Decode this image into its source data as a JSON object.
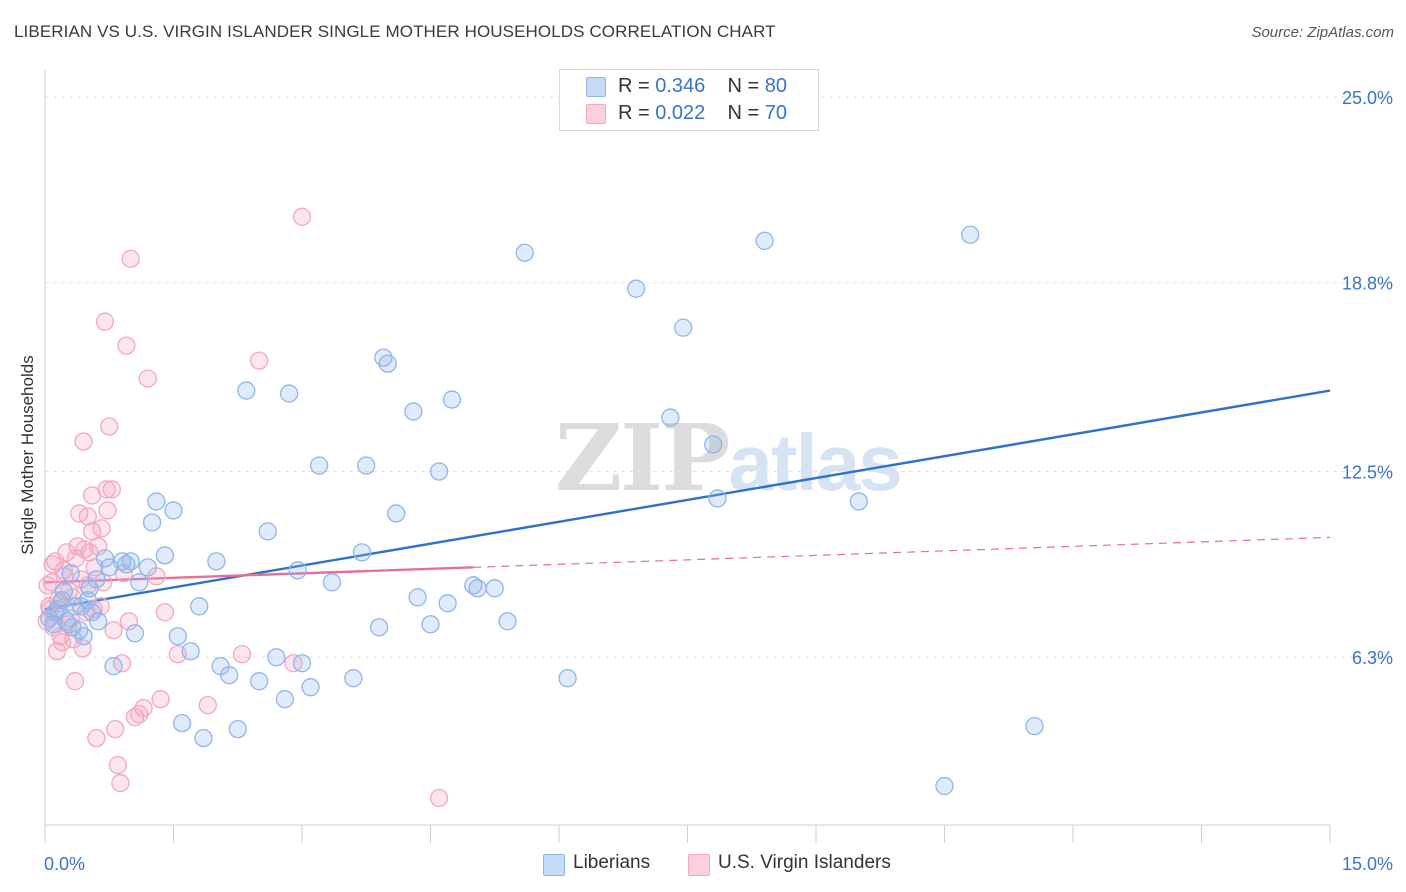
{
  "title": "LIBERIAN VS U.S. VIRGIN ISLANDER SINGLE MOTHER HOUSEHOLDS CORRELATION CHART",
  "source": "Source: ZipAtlas.com",
  "watermark": {
    "zip": "ZIP",
    "atlas": "atlas"
  },
  "legend": [
    {
      "r_label": "R = ",
      "r_value": "0.346",
      "n_label": "N = ",
      "n_value": "80"
    },
    {
      "r_label": "R = ",
      "r_value": "0.022",
      "n_label": "N = ",
      "n_value": "70"
    }
  ],
  "chart_data": {
    "type": "scatter",
    "title": "LIBERIAN VS U.S. VIRGIN ISLANDER SINGLE MOTHER HOUSEHOLDS CORRELATION CHART",
    "xlabel": "",
    "ylabel": "Single Mother Households",
    "xlim": [
      0,
      15
    ],
    "ylim": [
      0.7,
      25.9
    ],
    "x_tick_labels": [
      "0.0%",
      "15.0%"
    ],
    "y_ticks": [
      6.3,
      12.5,
      18.8,
      25.0
    ],
    "y_tick_labels": [
      "6.3%",
      "12.5%",
      "18.8%",
      "25.0%"
    ],
    "grid": true,
    "legend_position": "top-center",
    "series": [
      {
        "name": "Liberians",
        "color": "#8fb6ea",
        "line_color": "#2e6fcf",
        "trend": {
          "x": [
            0.0,
            15.0
          ],
          "y": [
            7.9,
            15.2
          ]
        },
        "points": [
          [
            0.05,
            7.6
          ],
          [
            0.1,
            7.4
          ],
          [
            0.15,
            7.9
          ],
          [
            0.2,
            8.2
          ],
          [
            0.25,
            7.5
          ],
          [
            0.3,
            9.1
          ],
          [
            0.35,
            8.0
          ],
          [
            0.4,
            7.2
          ],
          [
            0.45,
            7.0
          ],
          [
            0.5,
            8.2
          ],
          [
            0.55,
            7.8
          ],
          [
            0.6,
            8.9
          ],
          [
            0.7,
            9.6
          ],
          [
            0.75,
            9.3
          ],
          [
            0.8,
            6.0
          ],
          [
            0.9,
            9.5
          ],
          [
            1.0,
            9.5
          ],
          [
            1.05,
            7.1
          ],
          [
            1.1,
            8.8
          ],
          [
            1.2,
            9.3
          ],
          [
            1.25,
            10.8
          ],
          [
            1.3,
            11.5
          ],
          [
            1.4,
            9.7
          ],
          [
            1.5,
            11.2
          ],
          [
            1.55,
            7.0
          ],
          [
            1.6,
            4.1
          ],
          [
            1.7,
            6.5
          ],
          [
            1.8,
            8.0
          ],
          [
            1.85,
            3.6
          ],
          [
            2.0,
            9.5
          ],
          [
            2.05,
            6.0
          ],
          [
            2.15,
            5.7
          ],
          [
            2.25,
            3.9
          ],
          [
            2.35,
            15.2
          ],
          [
            2.5,
            5.5
          ],
          [
            2.6,
            10.5
          ],
          [
            2.7,
            6.3
          ],
          [
            2.8,
            4.9
          ],
          [
            2.85,
            15.1
          ],
          [
            2.95,
            9.2
          ],
          [
            3.0,
            6.1
          ],
          [
            3.1,
            5.3
          ],
          [
            3.2,
            12.7
          ],
          [
            3.35,
            8.8
          ],
          [
            3.6,
            5.6
          ],
          [
            3.7,
            9.8
          ],
          [
            3.75,
            12.7
          ],
          [
            3.9,
            7.3
          ],
          [
            3.95,
            16.3
          ],
          [
            4.0,
            16.1
          ],
          [
            4.1,
            11.1
          ],
          [
            4.3,
            14.5
          ],
          [
            4.35,
            8.3
          ],
          [
            4.5,
            7.4
          ],
          [
            4.6,
            12.5
          ],
          [
            4.7,
            8.1
          ],
          [
            4.75,
            14.9
          ],
          [
            5.0,
            8.7
          ],
          [
            5.05,
            8.6
          ],
          [
            5.25,
            8.6
          ],
          [
            5.4,
            7.5
          ],
          [
            5.6,
            19.8
          ],
          [
            6.1,
            5.6
          ],
          [
            6.9,
            18.6
          ],
          [
            7.3,
            14.3
          ],
          [
            7.45,
            17.3
          ],
          [
            7.8,
            13.4
          ],
          [
            7.85,
            11.6
          ],
          [
            8.4,
            20.2
          ],
          [
            9.5,
            11.5
          ],
          [
            10.5,
            2.0
          ],
          [
            10.8,
            20.4
          ],
          [
            11.55,
            4.0
          ],
          [
            0.12,
            7.8
          ],
          [
            0.22,
            8.5
          ],
          [
            0.32,
            7.3
          ],
          [
            0.42,
            8.0
          ],
          [
            0.52,
            8.6
          ],
          [
            0.62,
            7.5
          ],
          [
            0.95,
            9.4
          ]
        ]
      },
      {
        "name": "U.S. Virgin Islanders",
        "color": "#f4a7c0",
        "line_color": "#e56f98",
        "trend": {
          "x": [
            0.0,
            5.0
          ],
          "y": [
            8.8,
            9.3
          ]
        },
        "trend_dashed": {
          "x": [
            5.0,
            15.0
          ],
          "y": [
            9.3,
            10.3
          ]
        },
        "points": [
          [
            0.02,
            7.5
          ],
          [
            0.05,
            8.0
          ],
          [
            0.08,
            8.8
          ],
          [
            0.1,
            7.3
          ],
          [
            0.12,
            9.5
          ],
          [
            0.15,
            8.2
          ],
          [
            0.18,
            7.0
          ],
          [
            0.2,
            6.8
          ],
          [
            0.22,
            9.2
          ],
          [
            0.25,
            9.8
          ],
          [
            0.28,
            8.5
          ],
          [
            0.3,
            7.6
          ],
          [
            0.35,
            5.5
          ],
          [
            0.38,
            10.0
          ],
          [
            0.4,
            11.1
          ],
          [
            0.42,
            8.9
          ],
          [
            0.45,
            13.5
          ],
          [
            0.48,
            7.8
          ],
          [
            0.5,
            11.0
          ],
          [
            0.52,
            9.8
          ],
          [
            0.55,
            10.5
          ],
          [
            0.58,
            9.3
          ],
          [
            0.6,
            3.6
          ],
          [
            0.65,
            8.0
          ],
          [
            0.7,
            17.5
          ],
          [
            0.72,
            11.9
          ],
          [
            0.75,
            14.0
          ],
          [
            0.78,
            11.9
          ],
          [
            0.8,
            7.2
          ],
          [
            0.85,
            2.7
          ],
          [
            0.9,
            6.1
          ],
          [
            0.95,
            16.7
          ],
          [
            1.0,
            19.6
          ],
          [
            1.05,
            4.3
          ],
          [
            1.1,
            4.4
          ],
          [
            1.15,
            4.6
          ],
          [
            1.2,
            15.6
          ],
          [
            1.3,
            9.0
          ],
          [
            1.35,
            4.9
          ],
          [
            1.4,
            7.8
          ],
          [
            1.55,
            6.4
          ],
          [
            1.9,
            4.7
          ],
          [
            2.3,
            6.4
          ],
          [
            2.5,
            16.2
          ],
          [
            2.9,
            6.1
          ],
          [
            3.0,
            21.0
          ],
          [
            4.6,
            1.6
          ],
          [
            0.03,
            8.7
          ],
          [
            0.06,
            7.9
          ],
          [
            0.09,
            9.4
          ],
          [
            0.14,
            6.5
          ],
          [
            0.17,
            8.1
          ],
          [
            0.23,
            9.0
          ],
          [
            0.27,
            7.4
          ],
          [
            0.32,
            8.3
          ],
          [
            0.36,
            9.6
          ],
          [
            0.44,
            6.6
          ],
          [
            0.5,
            8.7
          ],
          [
            0.55,
            11.7
          ],
          [
            0.62,
            10.0
          ],
          [
            0.68,
            8.8
          ],
          [
            0.73,
            11.2
          ],
          [
            0.82,
            3.9
          ],
          [
            0.88,
            2.1
          ],
          [
            0.92,
            9.1
          ],
          [
            0.98,
            7.5
          ],
          [
            0.33,
            6.9
          ],
          [
            0.46,
            9.9
          ],
          [
            0.57,
            7.9
          ],
          [
            0.66,
            10.6
          ]
        ]
      }
    ]
  }
}
